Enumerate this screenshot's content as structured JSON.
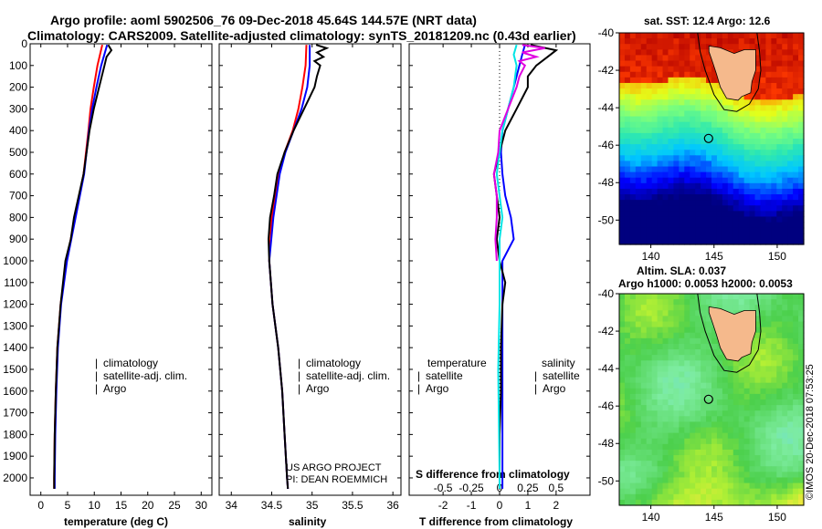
{
  "header": {
    "line1": "Argo profile: aoml 5902506_76 09-Dec-2018 45.64S 144.57E (NRT data)",
    "line2": "Climatology: CARS2009. Satellite-adjusted climatology: synTS_20181209.nc (0.43d earlier)"
  },
  "colors": {
    "climatology": "#ff0000",
    "satellite": "#0000ff",
    "argo": "#000000",
    "sat_s": "#00e5e5",
    "argo_s": "#e000e0"
  },
  "depth_axis": {
    "ticks": [
      0,
      100,
      200,
      300,
      400,
      500,
      600,
      700,
      800,
      900,
      1000,
      1100,
      1200,
      1300,
      1400,
      1500,
      1600,
      1700,
      1800,
      1900,
      2000
    ],
    "labels": [
      "0",
      "100",
      "200",
      "300",
      "400",
      "500",
      "600",
      "700",
      "800",
      "900",
      "1000",
      "1100",
      "1200",
      "1300",
      "1400",
      "1500",
      "1600",
      "1700",
      "1800",
      "1900",
      "2000"
    ]
  },
  "chart_data": [
    {
      "type": "line",
      "name": "temperature",
      "xlabel": "temperature (deg C)",
      "xlim": [
        -2,
        32
      ],
      "xticks": [
        0,
        5,
        10,
        15,
        20,
        25,
        30
      ],
      "xtick_labels": [
        "0",
        "5",
        "10",
        "15",
        "20",
        "25",
        "30"
      ],
      "ylim": [
        0,
        2080
      ],
      "legend": [
        "climatology",
        "satellite-adj. clim.",
        "Argo"
      ],
      "series": [
        {
          "name": "climatology",
          "depth": [
            5,
            100,
            200,
            300,
            400,
            600,
            800,
            1000,
            1200,
            1400,
            1600,
            1800,
            2000,
            2050
          ],
          "values": [
            11.5,
            10.6,
            9.9,
            9.3,
            8.9,
            8.0,
            6.4,
            4.8,
            3.7,
            3.1,
            2.8,
            2.6,
            2.5,
            2.5
          ]
        },
        {
          "name": "satellite-adj. clim.",
          "depth": [
            5,
            100,
            200,
            300,
            400,
            600,
            800,
            1000,
            1200,
            1400,
            1600,
            1800,
            2000,
            2050
          ],
          "values": [
            12.4,
            11.3,
            10.4,
            9.6,
            9.0,
            8.1,
            6.5,
            4.9,
            3.8,
            3.2,
            2.9,
            2.7,
            2.6,
            2.6
          ]
        },
        {
          "name": "Argo",
          "depth": [
            5,
            30,
            60,
            100,
            200,
            300,
            400,
            600,
            800,
            900,
            1000,
            1200,
            1400,
            1600,
            1800,
            2000,
            2050
          ],
          "values": [
            12.6,
            13.2,
            12.3,
            11.9,
            10.9,
            9.9,
            9.1,
            8.0,
            6.2,
            5.6,
            4.6,
            3.7,
            3.1,
            2.8,
            2.6,
            2.5,
            2.5
          ]
        }
      ]
    },
    {
      "type": "line",
      "name": "salinity",
      "xlabel": "salinity",
      "xlim": [
        33.85,
        36.1
      ],
      "xticks": [
        34,
        34.5,
        35,
        35.5,
        36
      ],
      "xtick_labels": [
        "34",
        "34.5",
        "35",
        "35.5",
        "36"
      ],
      "ylim": [
        0,
        2080
      ],
      "legend": [
        "climatology",
        "satellite-adj. clim.",
        "Argo"
      ],
      "note1": "US ARGO PROJECT",
      "note2": "PI: DEAN ROEMMICH",
      "series": [
        {
          "name": "climatology",
          "depth": [
            5,
            100,
            200,
            300,
            400,
            500,
            600,
            800,
            1000,
            1200,
            1400,
            1600,
            1800,
            2000,
            2050
          ],
          "values": [
            34.93,
            34.92,
            34.88,
            34.83,
            34.76,
            34.66,
            34.59,
            34.5,
            34.47,
            34.51,
            34.58,
            34.63,
            34.66,
            34.69,
            34.7
          ]
        },
        {
          "name": "satellite-adj. clim.",
          "depth": [
            5,
            100,
            200,
            300,
            400,
            500,
            600,
            800,
            1000,
            1200,
            1400,
            1600,
            1800,
            2000,
            2050
          ],
          "values": [
            34.97,
            34.97,
            34.94,
            34.87,
            34.77,
            34.67,
            34.6,
            34.52,
            34.47,
            34.51,
            34.58,
            34.63,
            34.66,
            34.69,
            34.7
          ]
        },
        {
          "name": "Argo",
          "depth": [
            5,
            20,
            40,
            60,
            80,
            100,
            150,
            200,
            300,
            400,
            500,
            600,
            700,
            800,
            900,
            1000,
            1200,
            1400,
            1600,
            1800,
            2000,
            2050
          ],
          "values": [
            35.05,
            35.18,
            35.06,
            35.14,
            35.03,
            35.1,
            35.06,
            35.03,
            34.9,
            34.77,
            34.66,
            34.57,
            34.53,
            34.48,
            34.46,
            34.47,
            34.51,
            34.58,
            34.63,
            34.66,
            34.69,
            34.7
          ]
        }
      ]
    },
    {
      "type": "line",
      "name": "differences",
      "xlabel": "T difference from climatology",
      "xlabel2": "S difference from climatology",
      "xlim": [
        -3.2,
        3.2
      ],
      "xticks": [
        -2,
        -1,
        0,
        1,
        2
      ],
      "xtick_labels": [
        "-2",
        "-1",
        "0",
        "1",
        "2"
      ],
      "s_tick_positions": [
        -2,
        -1,
        0,
        1,
        2
      ],
      "s_tick_labels": [
        "-0.5",
        "-0.25",
        "0",
        "0.25",
        "0.5"
      ],
      "ylim": [
        0,
        2080
      ],
      "legend_t": [
        "temperature",
        "satellite",
        "Argo"
      ],
      "legend_s": [
        "salinity",
        "satellite",
        "Argo"
      ],
      "series": [
        {
          "name": "T satellite",
          "depth": [
            5,
            50,
            100,
            200,
            300,
            400,
            500,
            600,
            700,
            800,
            900,
            1000,
            1200,
            1500,
            2000,
            2050
          ],
          "values": [
            0.9,
            0.8,
            0.7,
            0.5,
            0.3,
            0.1,
            0.05,
            0.1,
            0.2,
            0.4,
            0.5,
            0.1,
            0.1,
            0.1,
            0.1,
            0.1
          ]
        },
        {
          "name": "T Argo",
          "depth": [
            5,
            30,
            60,
            100,
            150,
            200,
            300,
            400,
            500,
            600,
            700,
            800,
            900,
            1000,
            1100,
            1200,
            1400,
            1600,
            1800,
            2000,
            2050
          ],
          "values": [
            1.1,
            2.0,
            1.7,
            1.3,
            1.0,
            1.0,
            0.6,
            0.2,
            0.0,
            -0.2,
            -0.1,
            0.0,
            -0.1,
            0.0,
            0.2,
            0.1,
            0.05,
            0.05,
            0.0,
            0.0,
            0.0
          ]
        },
        {
          "name": "S satellite",
          "depth": [
            5,
            50,
            100,
            200,
            300,
            400,
            500,
            600,
            700,
            800,
            900,
            1000,
            1200,
            1500,
            2000,
            2050
          ],
          "values": [
            0.6,
            0.5,
            0.6,
            0.5,
            0.3,
            0.1,
            0.0,
            -0.1,
            0.0,
            0.1,
            0.0,
            0.0,
            0.0,
            -0.05,
            0.0,
            0.0
          ]
        },
        {
          "name": "S Argo",
          "depth": [
            5,
            20,
            40,
            60,
            80,
            100,
            150,
            200,
            300,
            400,
            500,
            600,
            700,
            800,
            900,
            1000
          ],
          "values": [
            0.8,
            1.6,
            0.8,
            1.3,
            0.7,
            0.9,
            0.7,
            0.6,
            0.3,
            0.0,
            -0.05,
            -0.2,
            -0.1,
            -0.1,
            -0.15,
            -0.1
          ]
        }
      ]
    }
  ],
  "maps": {
    "top_title": "sat. SST: 12.4 Argo: 12.6",
    "bottom_title1": "Altim. SLA: 0.037",
    "bottom_title2": "Argo h1000: 0.0053 h2000: 0.0053",
    "lat_ticks": [
      "-40",
      "-42",
      "-44",
      "-46",
      "-48",
      "-50"
    ],
    "lon_ticks": [
      "140",
      "145",
      "150"
    ],
    "lat_values": [
      -40,
      -42,
      -44,
      -46,
      -48,
      -50
    ],
    "lon_values": [
      140,
      145,
      150
    ],
    "lon_range": [
      137.5,
      152.1
    ],
    "lat_range": [
      -40,
      -51.3
    ],
    "argo_position": {
      "lon": 144.57,
      "lat": -45.64
    }
  },
  "footer": {
    "credit": "©IMOS 20-Dec-2018 07:53:25"
  }
}
